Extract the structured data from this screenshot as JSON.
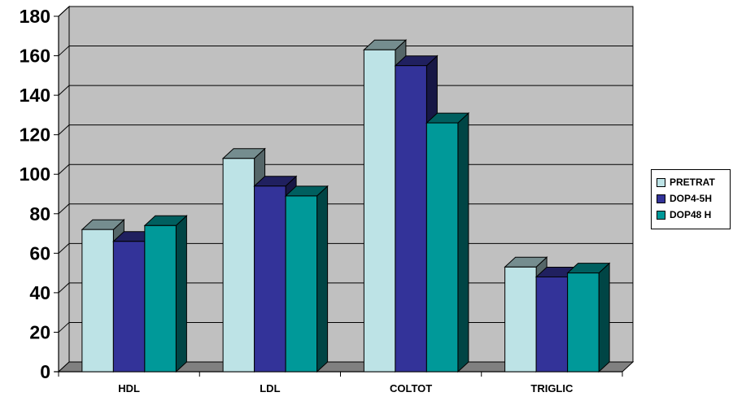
{
  "chart_data": {
    "type": "bar",
    "style": "3d-clustered-column",
    "title": "",
    "xlabel": "",
    "ylabel": "",
    "categories": [
      "HDL",
      "LDL",
      "COLTOT",
      "TRIGLIC"
    ],
    "series": [
      {
        "name": "PRETRAT",
        "color": "#BDE3E6",
        "values": [
          72,
          108,
          163,
          53
        ]
      },
      {
        "name": "DOP4-5H",
        "color": "#333399",
        "values": [
          66,
          94,
          155,
          48
        ]
      },
      {
        "name": "DOP48 H",
        "color": "#009999",
        "values": [
          74,
          89,
          126,
          50
        ]
      }
    ],
    "ylim": [
      0,
      180
    ],
    "yticks": [
      0,
      20,
      40,
      60,
      80,
      100,
      120,
      140,
      160,
      180
    ],
    "grid": true,
    "legend_position": "right",
    "wall_color": "#C0C0C0",
    "floor_color": "#808080"
  }
}
